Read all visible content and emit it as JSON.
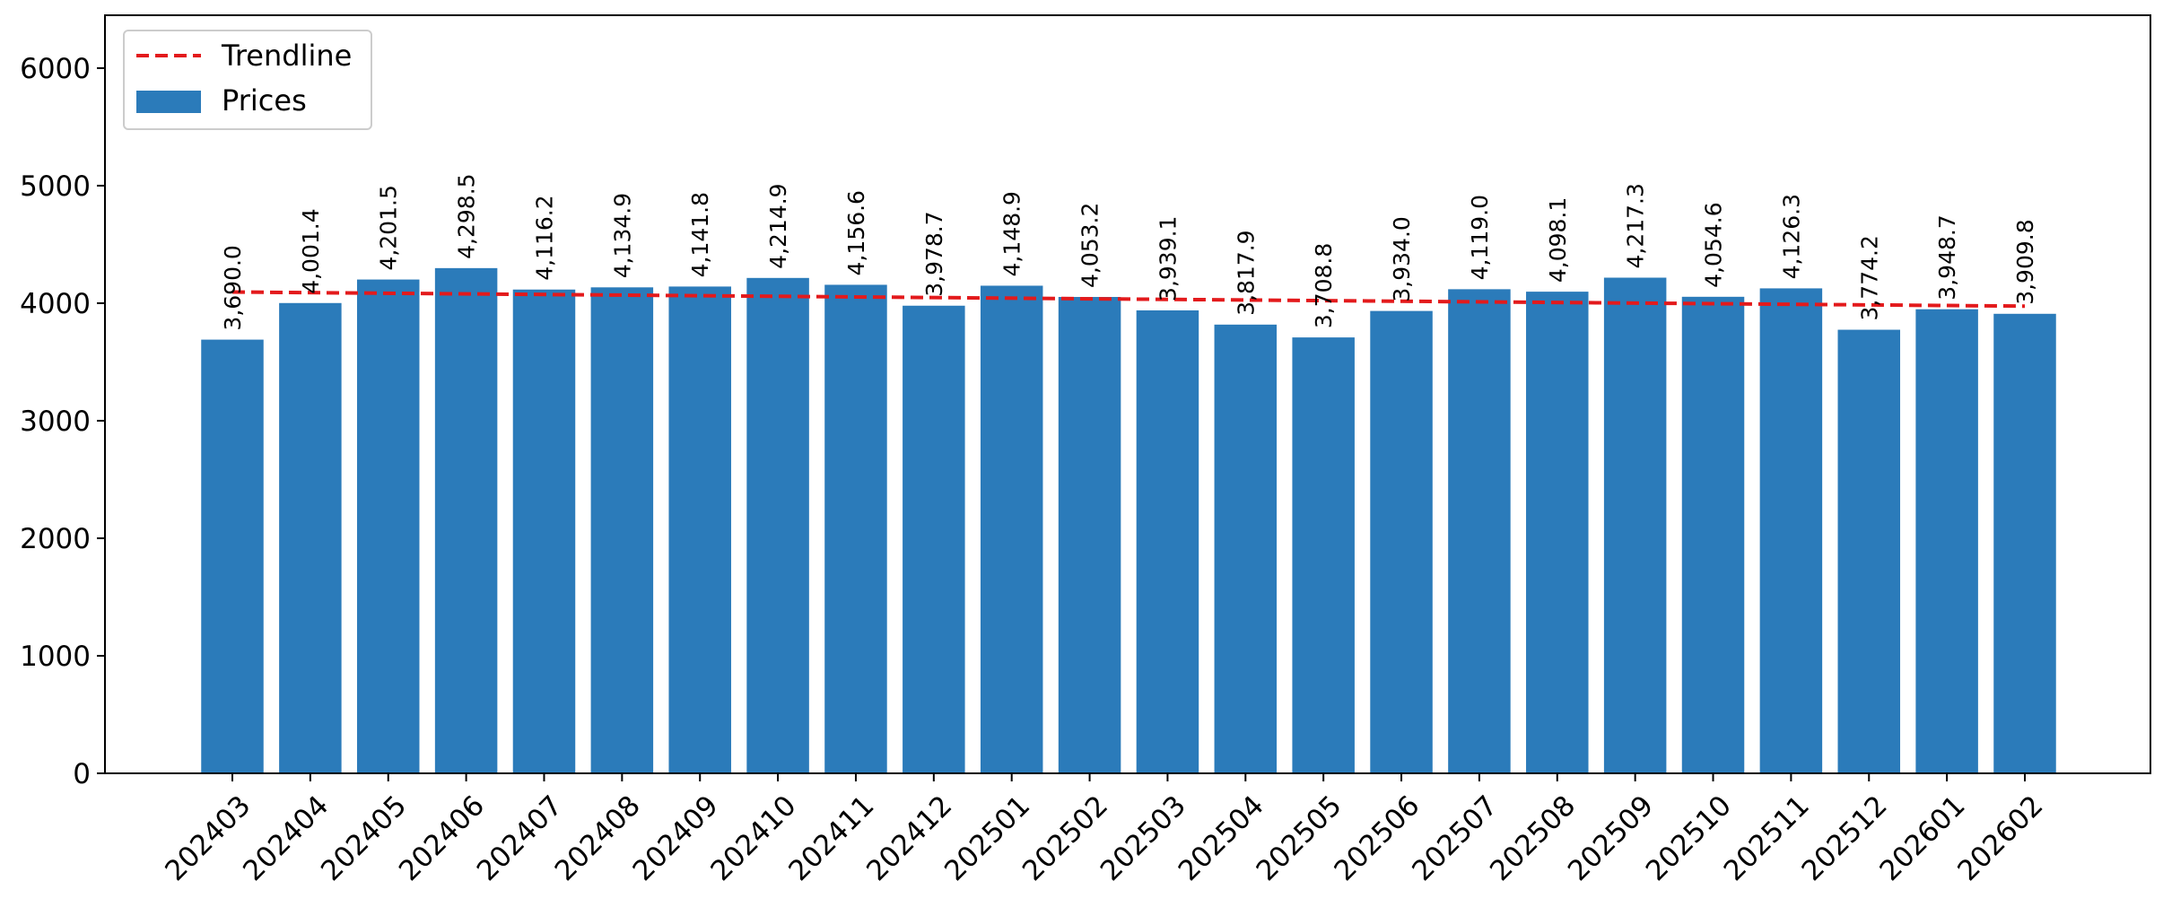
{
  "chart_data": {
    "type": "bar",
    "categories": [
      "202403",
      "202404",
      "202405",
      "202406",
      "202407",
      "202408",
      "202409",
      "202410",
      "202411",
      "202412",
      "202501",
      "202502",
      "202503",
      "202504",
      "202505",
      "202506",
      "202507",
      "202508",
      "202509",
      "202510",
      "202511",
      "202512",
      "202601",
      "202602"
    ],
    "series": [
      {
        "name": "Prices",
        "color": "#2b7bba",
        "values": [
          3690.0,
          4001.4,
          4201.5,
          4298.5,
          4116.2,
          4134.9,
          4141.8,
          4214.9,
          4156.6,
          3978.7,
          4148.9,
          4053.2,
          3939.1,
          3817.9,
          3708.8,
          3934.0,
          4119.0,
          4098.1,
          4217.3,
          4054.6,
          4126.3,
          3774.2,
          3948.7,
          3909.8
        ]
      }
    ],
    "data_labels": [
      "3,690.0",
      "4,001.4",
      "4,201.5",
      "4,298.5",
      "4,116.2",
      "4,134.9",
      "4,141.8",
      "4,214.9",
      "4,156.6",
      "3,978.7",
      "4,148.9",
      "4,053.2",
      "3,939.1",
      "3,817.9",
      "3,708.8",
      "3,934.0",
      "4,119.0",
      "4,098.1",
      "4,217.3",
      "4,054.6",
      "4,126.3",
      "3,774.2",
      "3,948.7",
      "3,909.8"
    ],
    "trendline": {
      "name": "Trendline",
      "color": "#e31a1c",
      "style": "dashed",
      "start": 4095,
      "end": 3975
    },
    "title": "",
    "xlabel": "",
    "ylabel": "",
    "ylim": [
      0,
      6450
    ],
    "yticks": [
      0,
      1000,
      2000,
      3000,
      4000,
      5000,
      6000
    ],
    "grid": false,
    "legend_position": "top-left",
    "legend": [
      {
        "label": "Trendline",
        "kind": "line"
      },
      {
        "label": "Prices",
        "kind": "patch"
      }
    ]
  }
}
